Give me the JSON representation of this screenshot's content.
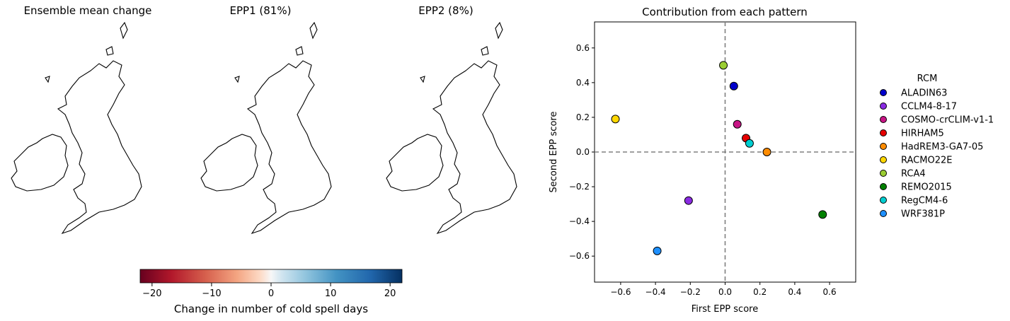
{
  "maps": {
    "titles": [
      "Ensemble mean change",
      "EPP1 (81%)",
      "EPP2 (8%)"
    ],
    "colorbar": {
      "label": "Change in number of cold spell days",
      "ticks": [
        -20,
        -10,
        0,
        10,
        20
      ],
      "range": [
        -22,
        22
      ],
      "colormap": "RdBu"
    }
  },
  "chart_data": {
    "type": "scatter",
    "title": "Contribution from each pattern",
    "xlabel": "First EPP score",
    "ylabel": "Second EPP score",
    "xlim": [
      -0.75,
      0.75
    ],
    "ylim": [
      -0.75,
      0.75
    ],
    "xticks": [
      -0.6,
      -0.4,
      -0.2,
      0.0,
      0.2,
      0.4,
      0.6
    ],
    "yticks": [
      -0.6,
      -0.4,
      -0.2,
      0.0,
      0.2,
      0.4,
      0.6
    ],
    "xtick_labels": [
      "−0.6",
      "−0.4",
      "−0.2",
      "0.0",
      "0.2",
      "0.4",
      "0.6"
    ],
    "ytick_labels": [
      "−0.6",
      "−0.4",
      "−0.2",
      "0.0",
      "0.2",
      "0.4",
      "0.6"
    ],
    "reference_lines": "dashed at x=0 and y=0",
    "legend_title": "RCM",
    "legend_position": "right, outside",
    "series": [
      {
        "name": "ALADIN63",
        "x": 0.05,
        "y": 0.38,
        "color": "#0000cc"
      },
      {
        "name": "CCLM4-8-17",
        "x": -0.21,
        "y": -0.28,
        "color": "#8a2be2"
      },
      {
        "name": "COSMO-crCLIM-v1-1",
        "x": 0.07,
        "y": 0.16,
        "color": "#c71585"
      },
      {
        "name": "HIRHAM5",
        "x": 0.12,
        "y": 0.08,
        "color": "#e60000"
      },
      {
        "name": "HadREM3-GA7-05",
        "x": 0.24,
        "y": 0.0,
        "color": "#ff8c00"
      },
      {
        "name": "RACMO22E",
        "x": -0.63,
        "y": 0.19,
        "color": "#ffd700"
      },
      {
        "name": "RCA4",
        "x": -0.01,
        "y": 0.5,
        "color": "#9acd32"
      },
      {
        "name": "REMO2015",
        "x": 0.56,
        "y": -0.36,
        "color": "#008000"
      },
      {
        "name": "RegCM4-6",
        "x": 0.14,
        "y": 0.05,
        "color": "#00ced1"
      },
      {
        "name": "WRF381P",
        "x": -0.39,
        "y": -0.57,
        "color": "#1e90ff"
      }
    ]
  }
}
